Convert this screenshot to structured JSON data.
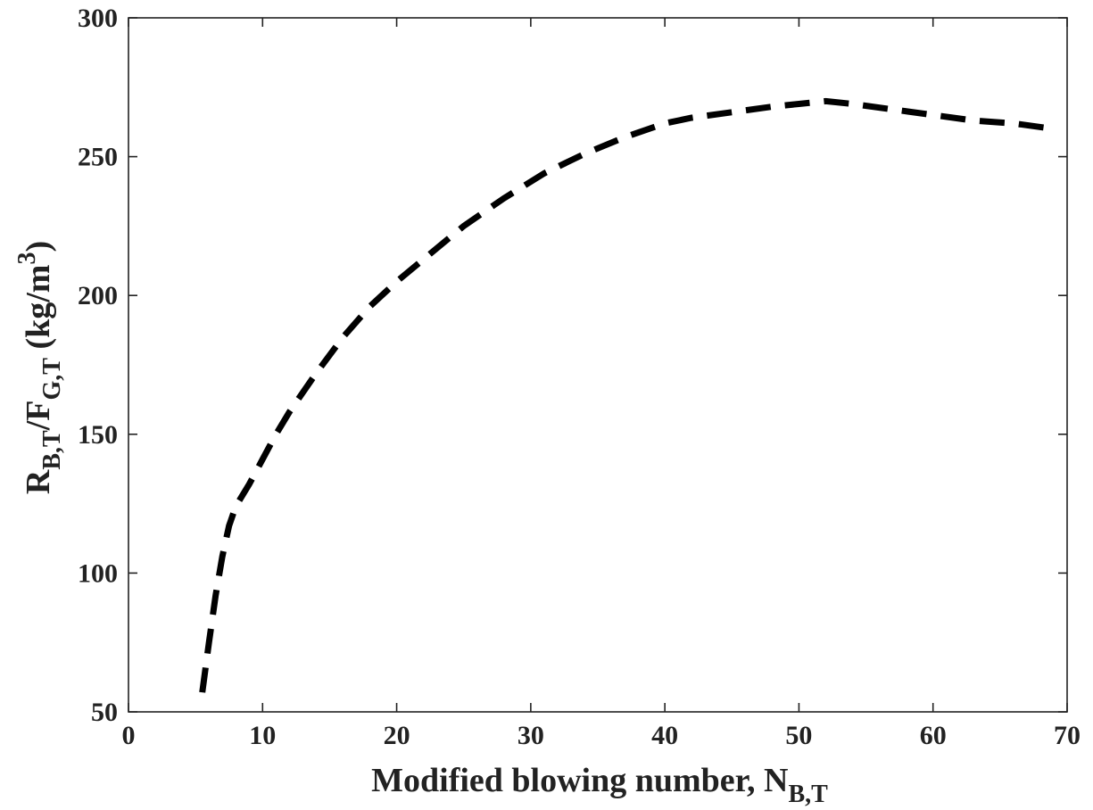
{
  "chart_data": {
    "type": "line",
    "xlabel": {
      "main": "Modified blowing number, N",
      "sub": "B,T"
    },
    "ylabel": {
      "p1": "R",
      "s1": "B,T",
      "p2": "/F",
      "s2": "G,T",
      "p3": " (kg/m",
      "sup": "3",
      "p4": ")"
    },
    "xlim": [
      0,
      70
    ],
    "ylim": [
      50,
      300
    ],
    "xticks": [
      0,
      10,
      20,
      30,
      40,
      50,
      60,
      70
    ],
    "yticks": [
      50,
      100,
      150,
      200,
      250,
      300
    ],
    "grid": false,
    "box": true,
    "series": [
      {
        "line_style": "dashed",
        "color": "#000000",
        "x": [
          5.5,
          6.0,
          6.5,
          7.0,
          7.5,
          8.0,
          8.5,
          9.0,
          10.0,
          11.0,
          12.0,
          14.0,
          16.0,
          18.0,
          20.0,
          22.0,
          25.0,
          28.0,
          31.0,
          34.0,
          37.0,
          40.0,
          42.0,
          45.0,
          48.0,
          50.0,
          52.0,
          54.0,
          57.0,
          60.0,
          63.0,
          66.0,
          69.0
        ],
        "y": [
          57,
          75,
          92,
          106,
          117,
          124,
          128,
          132,
          141,
          150,
          158,
          172,
          185,
          196,
          205,
          213,
          225,
          235,
          244,
          251,
          257,
          262,
          264,
          266,
          268,
          269,
          270,
          269,
          267,
          265,
          263,
          262,
          260
        ]
      }
    ]
  }
}
